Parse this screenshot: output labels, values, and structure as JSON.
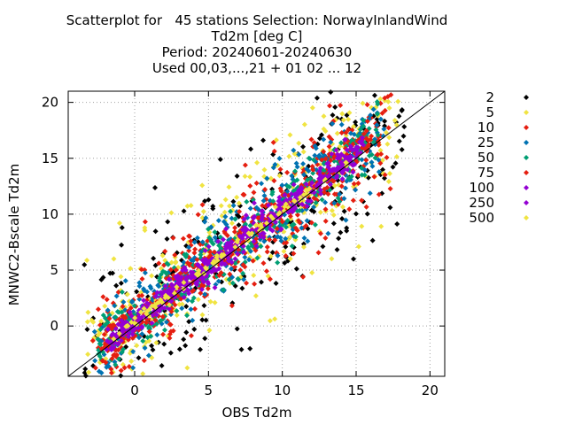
{
  "chart_data": {
    "type": "scatter",
    "title_lines": [
      "Scatterplot for   45 stations Selection: NorwayInlandWind",
      "Td2m [deg C]",
      "Period: 20240601-20240630",
      "Used 00,03,...,21 + 01 02 ... 12"
    ],
    "xlabel": "OBS Td2m",
    "ylabel": "MNWC2-Bscale Td2m",
    "xlim": [
      -4.5,
      21
    ],
    "ylim": [
      -4.5,
      21
    ],
    "xticks": [
      0,
      5,
      10,
      15,
      20
    ],
    "yticks": [
      0,
      5,
      10,
      15,
      20
    ],
    "grid": true,
    "legend_placement": "right",
    "diagonal_line": true,
    "series": [
      {
        "name": "2",
        "color": "#000000",
        "spread": 4.0
      },
      {
        "name": "5",
        "color": "#f0e442",
        "spread": 3.2
      },
      {
        "name": "10",
        "color": "#e51e10",
        "spread": 2.6
      },
      {
        "name": "25",
        "color": "#0072b2",
        "spread": 2.0
      },
      {
        "name": "50",
        "color": "#009e73",
        "spread": 1.5
      },
      {
        "name": "75",
        "color": "#e51e10",
        "spread": 1.1
      },
      {
        "name": "100",
        "color": "#9400d3",
        "spread": 0.8
      },
      {
        "name": "250",
        "color": "#9400d3",
        "spread": 0.5
      },
      {
        "name": "500",
        "color": "#f0e442",
        "spread": 0.25
      }
    ]
  }
}
